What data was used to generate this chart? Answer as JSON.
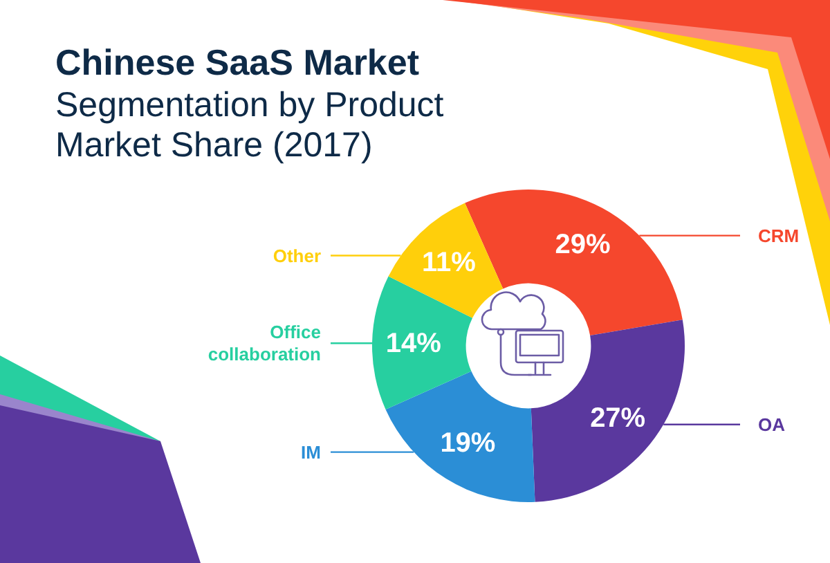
{
  "chart_data": {
    "type": "donut",
    "title": "Chinese SaaS Market",
    "subtitle": "Segmentation by Product Market Share (2017)",
    "categories": [
      "CRM",
      "OA",
      "IM",
      "Office collaboration",
      "Other"
    ],
    "values": [
      29,
      27,
      19,
      14,
      11
    ],
    "colors": [
      "#f5472d",
      "#5a389e",
      "#2b8ed6",
      "#27cfa0",
      "#ffcf0b"
    ],
    "value_labels": [
      "29%",
      "27%",
      "19%",
      "14%",
      "11%"
    ]
  }
}
